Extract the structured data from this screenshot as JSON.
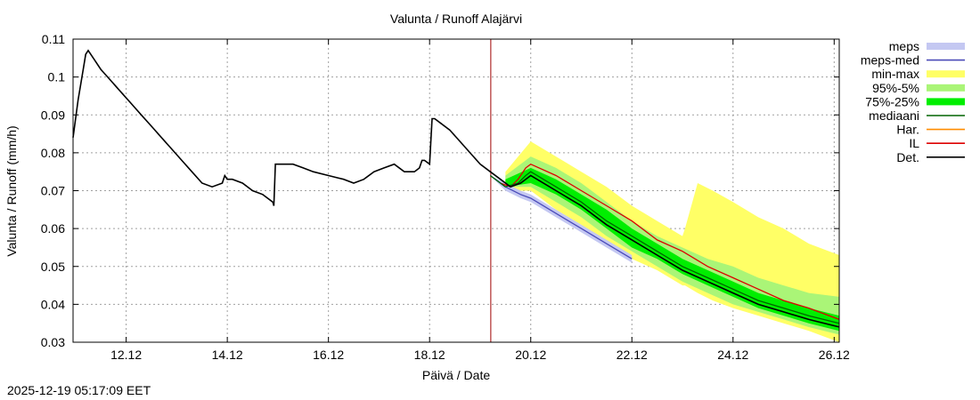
{
  "timestamp": "2025-12-19 05:17:09 EET",
  "chart_data": {
    "type": "line",
    "title": "Valunta / Runoff  Alajärvi",
    "xlabel": "Päivä / Date",
    "ylabel": "Valunta / Runoff (mm/h)",
    "xlim": [
      10.95,
      26.1
    ],
    "ylim": [
      0.03,
      0.11
    ],
    "x_ticks": [
      12,
      14,
      16,
      18,
      20,
      22,
      24,
      26
    ],
    "x_tick_labels": [
      "12.12",
      "14.12",
      "16.12",
      "18.12",
      "20.12",
      "22.12",
      "24.12",
      "26.12"
    ],
    "y_ticks": [
      0.03,
      0.04,
      0.05,
      0.06,
      0.07,
      0.08,
      0.09,
      0.1,
      0.11
    ],
    "y_tick_labels": [
      "0.03",
      "0.04",
      "0.05",
      "0.06",
      "0.07",
      "0.08",
      "0.09",
      "0.1",
      "0.11"
    ],
    "grid": true,
    "now_marker_x": 19.21,
    "legend": {
      "placement": "right",
      "entries": [
        {
          "label": "meps",
          "color": "#c4c8f2",
          "style": "band"
        },
        {
          "label": "meps-med",
          "color": "#4a4ab8",
          "style": "line"
        },
        {
          "label": "min-max",
          "color": "#ffff66",
          "style": "band"
        },
        {
          "label": "95%-5%",
          "color": "#aaf577",
          "style": "band"
        },
        {
          "label": "75%-25%",
          "color": "#00ee00",
          "style": "band"
        },
        {
          "label": "mediaani",
          "color": "#006400",
          "style": "line"
        },
        {
          "label": "Har.",
          "color": "#ff8c00",
          "style": "line"
        },
        {
          "label": "IL",
          "color": "#dd0000",
          "style": "line"
        },
        {
          "label": "Det.",
          "color": "#000000",
          "style": "line"
        }
      ]
    },
    "series": [
      {
        "name": "Det.",
        "color": "#000000",
        "x": [
          10.95,
          11.05,
          11.15,
          11.2,
          11.25,
          11.35,
          11.5,
          11.7,
          11.9,
          12.1,
          12.3,
          12.5,
          12.7,
          12.9,
          13.1,
          13.3,
          13.5,
          13.7,
          13.9,
          13.95,
          14.0,
          14.05,
          14.1,
          14.3,
          14.5,
          14.7,
          14.9,
          14.92,
          14.95,
          15.3,
          15.5,
          15.7,
          16.0,
          16.3,
          16.5,
          16.7,
          16.9,
          17.1,
          17.3,
          17.5,
          17.7,
          17.8,
          17.85,
          17.9,
          18.0,
          18.05,
          18.1,
          18.2,
          18.4,
          18.6,
          18.8,
          19.0,
          19.2,
          19.4,
          19.6,
          19.8,
          20.0,
          20.5,
          21.0,
          21.5,
          22.0,
          22.5,
          23.0,
          23.5,
          24.0,
          24.5,
          25.0,
          25.5,
          26.1
        ],
        "y": [
          0.084,
          0.094,
          0.102,
          0.106,
          0.107,
          0.105,
          0.102,
          0.099,
          0.096,
          0.093,
          0.09,
          0.087,
          0.084,
          0.081,
          0.078,
          0.075,
          0.072,
          0.071,
          0.072,
          0.074,
          0.073,
          0.073,
          0.073,
          0.072,
          0.07,
          0.069,
          0.067,
          0.066,
          0.077,
          0.077,
          0.076,
          0.075,
          0.074,
          0.073,
          0.072,
          0.073,
          0.075,
          0.076,
          0.077,
          0.075,
          0.075,
          0.076,
          0.078,
          0.078,
          0.077,
          0.089,
          0.089,
          0.088,
          0.086,
          0.083,
          0.08,
          0.077,
          0.075,
          0.073,
          0.071,
          0.072,
          0.074,
          0.07,
          0.066,
          0.061,
          0.057,
          0.053,
          0.049,
          0.046,
          0.043,
          0.04,
          0.038,
          0.036,
          0.034
        ]
      },
      {
        "name": "mediaani",
        "color": "#006400",
        "x": [
          19.2,
          19.5,
          19.75,
          19.9,
          20.0,
          20.5,
          21.0,
          21.5,
          22.0,
          22.5,
          23.0,
          23.5,
          24.0,
          24.5,
          25.0,
          25.5,
          26.1
        ],
        "y": [
          0.074,
          0.071,
          0.072,
          0.074,
          0.075,
          0.071,
          0.067,
          0.062,
          0.058,
          0.054,
          0.05,
          0.047,
          0.044,
          0.041,
          0.039,
          0.037,
          0.035
        ]
      },
      {
        "name": "IL",
        "color": "#dd0000",
        "x": [
          19.4,
          19.6,
          19.75,
          19.9,
          20.0,
          20.5,
          21.0,
          21.5,
          22.0,
          22.5,
          23.0,
          23.5,
          24.0,
          24.5,
          25.0,
          25.5,
          26.1
        ],
        "y": [
          0.072,
          0.071,
          0.073,
          0.076,
          0.077,
          0.074,
          0.07,
          0.066,
          0.062,
          0.057,
          0.054,
          0.05,
          0.047,
          0.044,
          0.041,
          0.039,
          0.036
        ]
      },
      {
        "name": "meps-med",
        "color": "#4a4ab8",
        "x": [
          19.2,
          19.5,
          19.8,
          20.0,
          20.5,
          21.0,
          21.5,
          22.0
        ],
        "y": [
          0.074,
          0.071,
          0.069,
          0.068,
          0.064,
          0.06,
          0.056,
          0.052
        ]
      }
    ],
    "bands": [
      {
        "name": "min-max",
        "color": "#ffff66",
        "x": [
          19.5,
          20.0,
          20.5,
          21.0,
          21.5,
          22.0,
          22.5,
          23.0,
          23.05,
          23.3,
          23.6,
          24.0,
          24.5,
          25.0,
          25.5,
          26.1
        ],
        "upper": [
          0.075,
          0.083,
          0.079,
          0.075,
          0.071,
          0.066,
          0.062,
          0.058,
          0.06,
          0.072,
          0.07,
          0.067,
          0.063,
          0.06,
          0.056,
          0.053
        ],
        "lower": [
          0.07,
          0.07,
          0.065,
          0.061,
          0.056,
          0.052,
          0.049,
          0.045,
          0.045,
          0.043,
          0.041,
          0.039,
          0.037,
          0.035,
          0.033,
          0.03
        ]
      },
      {
        "name": "95%-5%",
        "color": "#aaf577",
        "x": [
          19.5,
          20.0,
          20.5,
          21.0,
          21.5,
          22.0,
          22.5,
          23.0,
          23.5,
          24.0,
          24.5,
          25.0,
          25.5,
          26.1
        ],
        "upper": [
          0.074,
          0.079,
          0.076,
          0.072,
          0.067,
          0.062,
          0.058,
          0.055,
          0.052,
          0.05,
          0.047,
          0.045,
          0.043,
          0.042
        ],
        "lower": [
          0.071,
          0.071,
          0.067,
          0.063,
          0.058,
          0.054,
          0.05,
          0.046,
          0.043,
          0.04,
          0.038,
          0.036,
          0.034,
          0.032
        ]
      },
      {
        "name": "75%-25%",
        "color": "#00ee00",
        "x": [
          19.5,
          20.0,
          20.5,
          21.0,
          21.5,
          22.0,
          22.5,
          23.0,
          23.5,
          24.0,
          24.5,
          25.0,
          25.5,
          26.1
        ],
        "upper": [
          0.073,
          0.076,
          0.073,
          0.069,
          0.065,
          0.06,
          0.056,
          0.052,
          0.049,
          0.046,
          0.043,
          0.041,
          0.039,
          0.037
        ],
        "lower": [
          0.071,
          0.072,
          0.069,
          0.065,
          0.06,
          0.055,
          0.052,
          0.048,
          0.045,
          0.042,
          0.039,
          0.037,
          0.035,
          0.033
        ]
      },
      {
        "name": "meps",
        "color": "#c4c8f2",
        "x": [
          19.2,
          19.5,
          19.8,
          20.0,
          20.5,
          21.0,
          21.5,
          22.0
        ],
        "upper": [
          0.074,
          0.072,
          0.07,
          0.069,
          0.065,
          0.061,
          0.057,
          0.053
        ],
        "lower": [
          0.074,
          0.07,
          0.068,
          0.067,
          0.063,
          0.059,
          0.055,
          0.051
        ]
      }
    ]
  }
}
